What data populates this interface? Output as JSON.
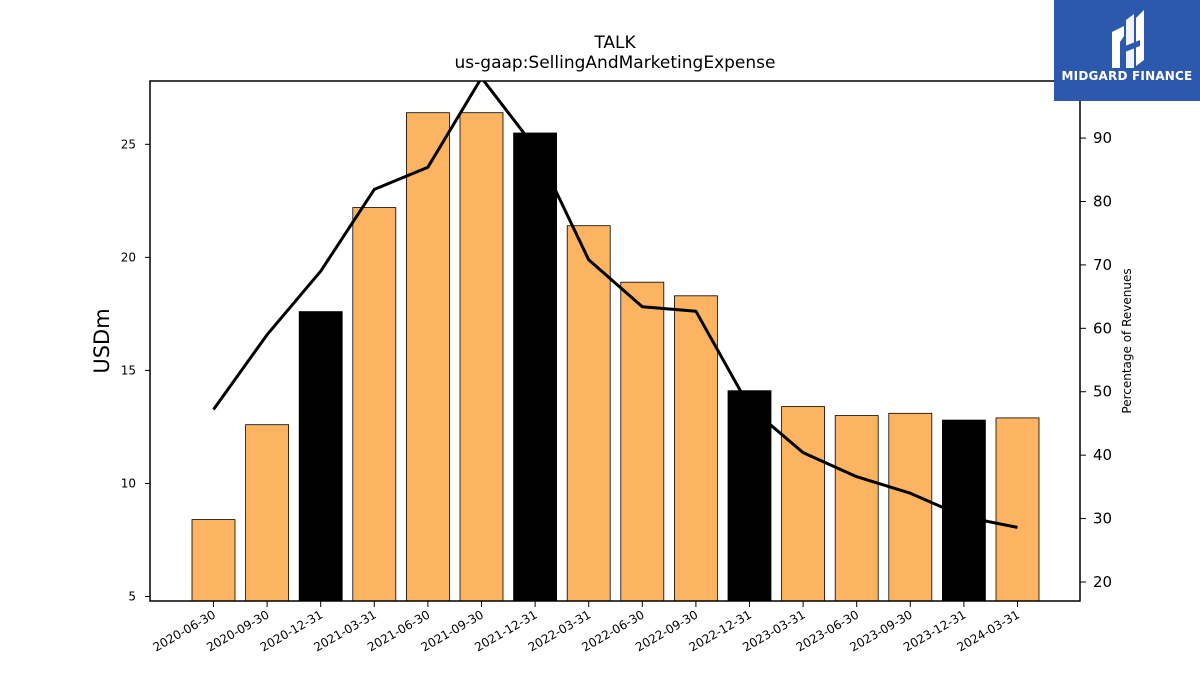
{
  "chart_data": {
    "type": "bar",
    "title": "TALK",
    "subtitle": "us-gaap:SellingAndMarketingExpense",
    "ylabel": "USDm",
    "ylabel_right": "Percentage of Revenues",
    "ylim": [
      4.8,
      27.8
    ],
    "ylim_right": [
      17,
      99
    ],
    "yticks": [
      5,
      10,
      15,
      20,
      25
    ],
    "yticks_right": [
      20,
      30,
      40,
      50,
      60,
      70,
      80,
      90
    ],
    "categories": [
      "2020-06-30",
      "2020-09-30",
      "2020-12-31",
      "2021-03-31",
      "2021-06-30",
      "2021-09-30",
      "2021-12-31",
      "2022-03-31",
      "2022-06-30",
      "2022-09-30",
      "2022-12-31",
      "2023-03-31",
      "2023-06-30",
      "2023-09-30",
      "2023-12-31",
      "2024-03-31"
    ],
    "series": [
      {
        "type": "bar",
        "axis": "left",
        "values": [
          8.4,
          12.6,
          17.6,
          22.2,
          26.4,
          26.4,
          25.5,
          21.4,
          18.9,
          18.3,
          14.1,
          13.4,
          13.0,
          13.1,
          12.8,
          12.9
        ],
        "colors": [
          "#fdb462",
          "#fdb462",
          "#000000",
          "#fdb462",
          "#fdb462",
          "#fdb462",
          "#000000",
          "#fdb462",
          "#fdb462",
          "#fdb462",
          "#000000",
          "#fdb462",
          "#fdb462",
          "#fdb462",
          "#000000",
          "#fdb462"
        ]
      },
      {
        "type": "line",
        "axis": "right",
        "color": "#000000",
        "values": [
          47.2,
          59.0,
          69.0,
          81.9,
          85.4,
          99.5,
          88.5,
          70.8,
          63.4,
          62.7,
          47.6,
          40.4,
          36.6,
          34.0,
          30.3,
          28.6
        ]
      }
    ],
    "grid": false,
    "legend": "none"
  },
  "logo": {
    "text": "MIDGARD FINANCE",
    "bg_color": "#2c59ad"
  }
}
